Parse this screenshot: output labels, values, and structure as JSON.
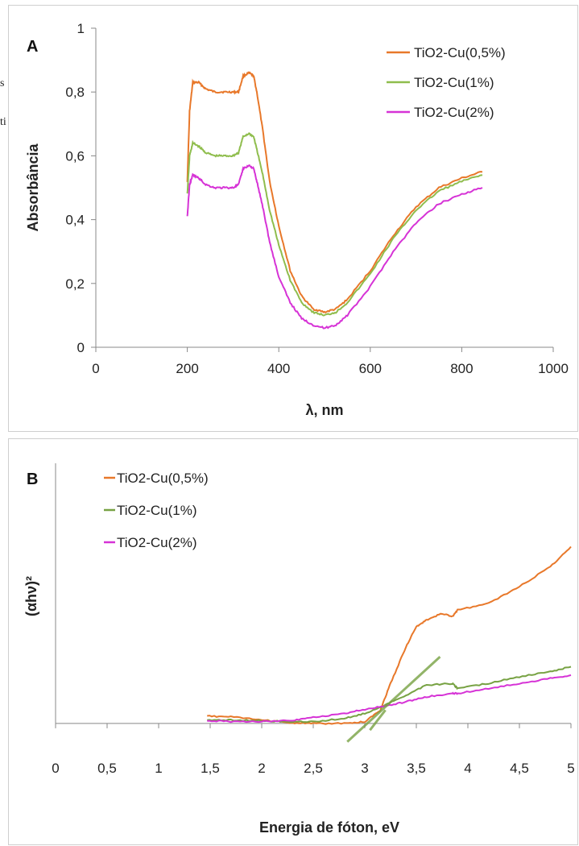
{
  "stray_text": [
    "s",
    "ti"
  ],
  "chart_data": [
    {
      "type": "line",
      "panel_label": "A",
      "title": "",
      "xlabel": "λ, nm",
      "ylabel": "Absorbância",
      "xlim": [
        0,
        1000
      ],
      "ylim": [
        0,
        1
      ],
      "xticks": [
        "0",
        "200",
        "400",
        "600",
        "800",
        "1000"
      ],
      "yticks": [
        "0",
        "0,2",
        "0,4",
        "0,6",
        "0,8",
        "1"
      ],
      "legend_position": "top-right",
      "series": [
        {
          "name": "TiO2-Cu(0,5%)",
          "color": "#e8782a",
          "x": [
            200,
            205,
            212,
            225,
            240,
            260,
            280,
            300,
            312,
            322,
            335,
            345,
            352,
            365,
            380,
            400,
            425,
            450,
            475,
            500,
            525,
            550,
            600,
            650,
            700,
            750,
            800,
            845
          ],
          "y": [
            0.52,
            0.74,
            0.83,
            0.83,
            0.81,
            0.8,
            0.8,
            0.8,
            0.8,
            0.85,
            0.86,
            0.85,
            0.8,
            0.68,
            0.52,
            0.38,
            0.24,
            0.16,
            0.12,
            0.11,
            0.12,
            0.15,
            0.24,
            0.35,
            0.44,
            0.5,
            0.53,
            0.55
          ]
        },
        {
          "name": "TiO2-Cu(1%)",
          "color": "#8fbd4d",
          "x": [
            200,
            205,
            212,
            225,
            240,
            260,
            280,
            300,
            312,
            322,
            335,
            345,
            352,
            365,
            380,
            400,
            425,
            450,
            475,
            500,
            525,
            550,
            600,
            650,
            700,
            750,
            800,
            845
          ],
          "y": [
            0.48,
            0.6,
            0.64,
            0.63,
            0.61,
            0.6,
            0.6,
            0.6,
            0.61,
            0.66,
            0.67,
            0.66,
            0.62,
            0.54,
            0.43,
            0.32,
            0.21,
            0.14,
            0.11,
            0.1,
            0.11,
            0.14,
            0.23,
            0.34,
            0.43,
            0.49,
            0.52,
            0.54
          ]
        },
        {
          "name": "TiO2-Cu(2%)",
          "color": "#d633d6",
          "x": [
            200,
            205,
            212,
            225,
            240,
            260,
            280,
            300,
            312,
            322,
            335,
            345,
            352,
            365,
            380,
            400,
            425,
            450,
            475,
            500,
            525,
            550,
            600,
            650,
            700,
            750,
            800,
            845
          ],
          "y": [
            0.41,
            0.51,
            0.54,
            0.53,
            0.51,
            0.5,
            0.5,
            0.5,
            0.51,
            0.56,
            0.57,
            0.56,
            0.52,
            0.44,
            0.33,
            0.22,
            0.14,
            0.09,
            0.07,
            0.06,
            0.07,
            0.1,
            0.19,
            0.3,
            0.39,
            0.45,
            0.48,
            0.5
          ]
        }
      ]
    },
    {
      "type": "line",
      "panel_label": "B",
      "title": "",
      "xlabel": "Energia de fóton, eV",
      "ylabel": "(αhν)²",
      "xlim": [
        0,
        5
      ],
      "ylim": [
        -0.8,
        7.8
      ],
      "xticks": [
        "0",
        "0,5",
        "1",
        "1,5",
        "2",
        "2,5",
        "3",
        "3,5",
        "4",
        "4,5",
        "5"
      ],
      "legend_position": "top-left",
      "series": [
        {
          "name": "TiO2-Cu(0,5%)",
          "color": "#e8782a",
          "x": [
            1.47,
            1.7,
            2.0,
            2.3,
            2.5,
            2.8,
            3.0,
            3.15,
            3.25,
            3.4,
            3.5,
            3.6,
            3.75,
            3.85,
            3.9,
            4.2,
            4.5,
            4.8,
            5.0
          ],
          "y": [
            0.22,
            0.2,
            0.1,
            0.02,
            0.0,
            0.0,
            0.05,
            0.4,
            1.2,
            2.3,
            2.9,
            3.1,
            3.3,
            3.2,
            3.4,
            3.6,
            4.1,
            4.7,
            5.3
          ]
        },
        {
          "name": "TiO2-Cu(1%)",
          "color": "#77a243",
          "x": [
            1.47,
            1.7,
            2.0,
            2.3,
            2.5,
            2.8,
            3.0,
            3.2,
            3.4,
            3.6,
            3.85,
            3.9,
            4.2,
            4.5,
            4.8,
            5.0
          ],
          "y": [
            0.1,
            0.1,
            0.08,
            0.05,
            0.05,
            0.15,
            0.3,
            0.55,
            0.85,
            1.15,
            1.2,
            1.05,
            1.2,
            1.4,
            1.55,
            1.7
          ]
        },
        {
          "name": "TiO2-Cu(2%)",
          "color": "#d633d6",
          "x": [
            1.47,
            1.7,
            2.0,
            2.3,
            2.5,
            2.8,
            3.0,
            3.2,
            3.4,
            3.6,
            3.85,
            3.9,
            4.2,
            4.5,
            4.8,
            5.0
          ],
          "y": [
            0.08,
            0.06,
            0.06,
            0.1,
            0.18,
            0.3,
            0.42,
            0.52,
            0.65,
            0.8,
            0.9,
            0.9,
            1.05,
            1.2,
            1.35,
            1.45
          ]
        }
      ],
      "tangent_lines": [
        {
          "color": "#77a243",
          "x": [
            2.83,
            3.73
          ],
          "y": [
            -0.55,
            2.0
          ]
        },
        {
          "color": "#77a243",
          "x": [
            3.05,
            3.2
          ],
          "y": [
            -0.2,
            0.4
          ]
        }
      ]
    }
  ]
}
